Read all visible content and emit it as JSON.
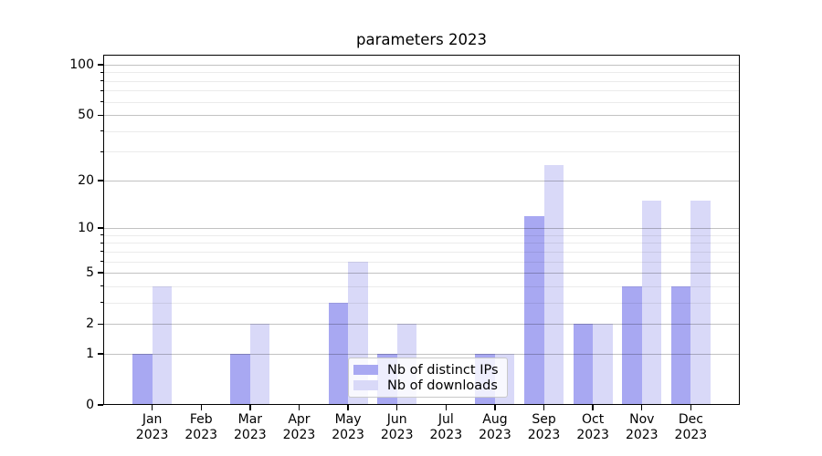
{
  "title": "parameters 2023",
  "chart_data": {
    "type": "bar",
    "title": "parameters 2023",
    "categories": [
      "Jan",
      "Feb",
      "Mar",
      "Apr",
      "May",
      "Jun",
      "Jul",
      "Aug",
      "Sep",
      "Oct",
      "Nov",
      "Dec"
    ],
    "category_year": "2023",
    "series": [
      {
        "name": "Nb of distinct IPs",
        "color": "#a8a8f2",
        "values": [
          1,
          0,
          1,
          0,
          3,
          1,
          0,
          1,
          12,
          2,
          4,
          4
        ]
      },
      {
        "name": "Nb of downloads",
        "color": "#d9d9f8",
        "values": [
          4,
          0,
          2,
          0,
          6,
          2,
          0,
          1,
          25,
          2,
          15,
          15
        ]
      }
    ],
    "xlabel": "",
    "ylabel": "",
    "yscale": "log(1+v)",
    "ylim": [
      0,
      115
    ],
    "ytick_labels": [
      "0",
      "1",
      "2",
      "5",
      "10",
      "20",
      "50",
      "100"
    ],
    "ytick_values": [
      0,
      1,
      2,
      5,
      10,
      20,
      50,
      100
    ],
    "ytick_minor_values": [
      3,
      4,
      6,
      7,
      8,
      9,
      30,
      40,
      60,
      70,
      80,
      90
    ],
    "grid": "both",
    "legend_position": "lower center inside plot"
  }
}
